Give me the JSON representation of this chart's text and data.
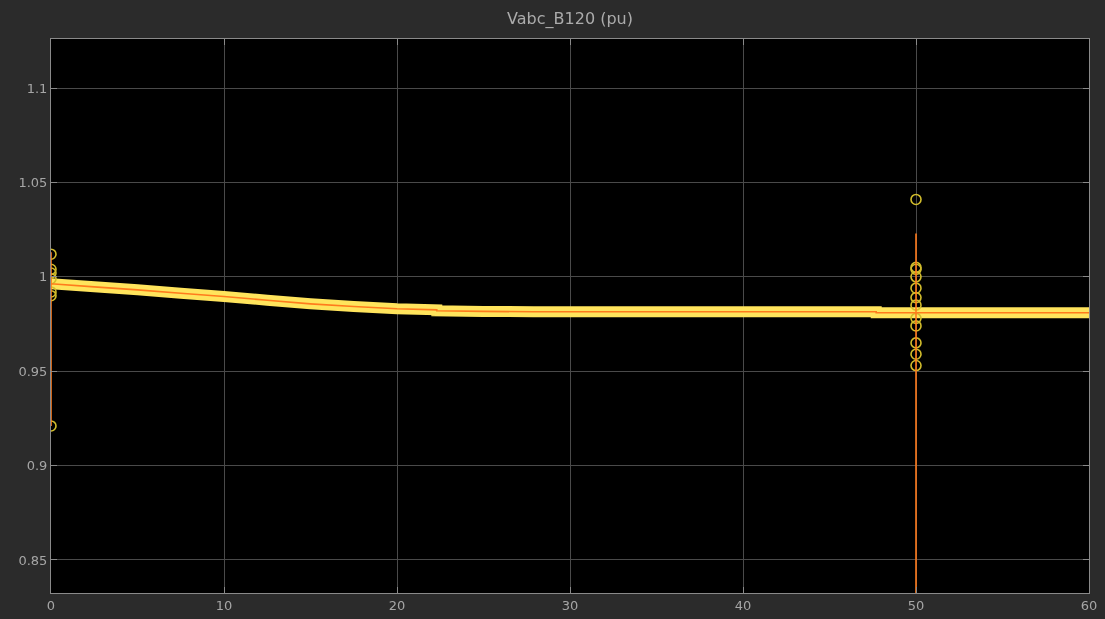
{
  "chart_data": {
    "type": "line",
    "title": "Vabc_B120 (pu)",
    "xlim": [
      0,
      60
    ],
    "xticks": [
      0,
      10,
      20,
      30,
      40,
      50,
      60
    ],
    "ylim": [
      0.8325,
      1.126
    ],
    "yticks": [
      0.85,
      0.9,
      0.95,
      1,
      1.05,
      1.1
    ],
    "grid": true,
    "series": [
      {
        "color": "#ffe45c",
        "x": [
          0,
          2.5,
          5,
          7.5,
          10,
          12.5,
          15,
          17.5,
          20,
          22.3,
          22.3,
          25,
          27.9,
          30,
          35,
          40,
          45,
          47.7,
          47.7,
          50,
          55,
          60
        ],
        "values": [
          0.9963,
          0.9947,
          0.9931,
          0.9913,
          0.9896,
          0.9876,
          0.9857,
          0.9843,
          0.9831,
          0.9825,
          0.982,
          0.9817,
          0.9815,
          0.9815,
          0.9815,
          0.9815,
          0.9815,
          0.9815,
          0.981,
          0.981,
          0.981,
          0.981
        ]
      },
      {
        "type": "scatter",
        "marker": "circle",
        "color": "#d2bd2c",
        "x": [
          0,
          0,
          0,
          0,
          0,
          0,
          0,
          50,
          50,
          50,
          50,
          50,
          50,
          50,
          50,
          50,
          50,
          50,
          50
        ],
        "values": [
          1.012,
          1.004,
          1.002,
          0.999,
          0.992,
          0.99,
          0.921,
          1.041,
          1.005,
          1.004,
          1.0,
          0.994,
          0.989,
          0.985,
          0.978,
          0.974,
          0.965,
          0.959,
          0.953
        ]
      },
      {
        "color": "#ff7b1c",
        "x": [
          0,
          0,
          0,
          2.5,
          5,
          7.5,
          10,
          12.5,
          15,
          17.5,
          20,
          22.3,
          22.3,
          25,
          27.9,
          30,
          35,
          40,
          45,
          47.7,
          47.7,
          50,
          50,
          50,
          50,
          55,
          60
        ],
        "values": [
          1.013,
          0.921,
          0.9963,
          0.9947,
          0.9931,
          0.9913,
          0.9896,
          0.9876,
          0.9857,
          0.9843,
          0.9831,
          0.9825,
          0.982,
          0.9817,
          0.9815,
          0.9815,
          0.9815,
          0.9815,
          0.9815,
          0.9815,
          0.981,
          0.981,
          1.023,
          0.8325,
          0.981,
          0.981,
          0.981
        ]
      }
    ]
  }
}
